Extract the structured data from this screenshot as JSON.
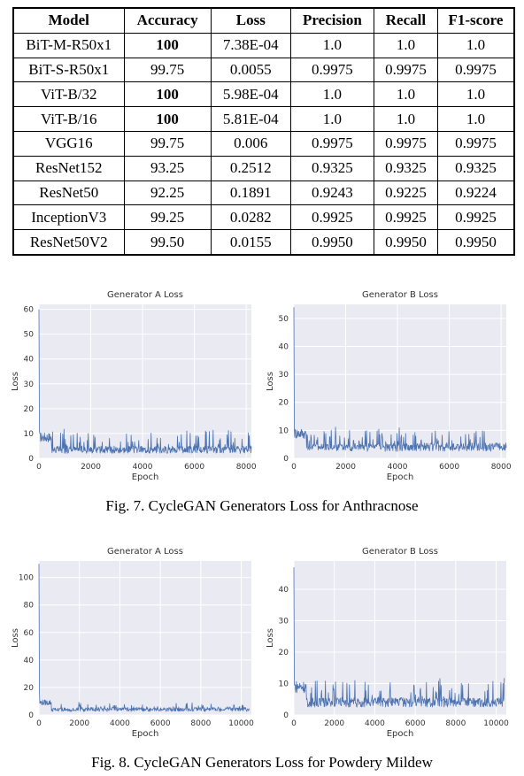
{
  "table": {
    "headers": [
      "Model",
      "Accuracy",
      "Loss",
      "Precision",
      "Recall",
      "F1-score"
    ],
    "rows": [
      {
        "model": "BiT-M-R50x1",
        "accuracy": "100",
        "accuracy_bold": true,
        "loss": "7.38E-04",
        "precision": "1.0",
        "recall": "1.0",
        "f1": "1.0"
      },
      {
        "model": "BiT-S-R50x1",
        "accuracy": "99.75",
        "accuracy_bold": false,
        "loss": "0.0055",
        "precision": "0.9975",
        "recall": "0.9975",
        "f1": "0.9975"
      },
      {
        "model": "ViT-B/32",
        "accuracy": "100",
        "accuracy_bold": true,
        "loss": "5.98E-04",
        "precision": "1.0",
        "recall": "1.0",
        "f1": "1.0"
      },
      {
        "model": "ViT-B/16",
        "accuracy": "100",
        "accuracy_bold": true,
        "loss": "5.81E-04",
        "precision": "1.0",
        "recall": "1.0",
        "f1": "1.0"
      },
      {
        "model": "VGG16",
        "accuracy": "99.75",
        "accuracy_bold": false,
        "loss": "0.006",
        "precision": "0.9975",
        "recall": "0.9975",
        "f1": "0.9975"
      },
      {
        "model": "ResNet152",
        "accuracy": "93.25",
        "accuracy_bold": false,
        "loss": "0.2512",
        "precision": "0.9325",
        "recall": "0.9325",
        "f1": "0.9325"
      },
      {
        "model": "ResNet50",
        "accuracy": "92.25",
        "accuracy_bold": false,
        "loss": "0.1891",
        "precision": "0.9243",
        "recall": "0.9225",
        "f1": "0.9224"
      },
      {
        "model": "InceptionV3",
        "accuracy": "99.25",
        "accuracy_bold": false,
        "loss": "0.0282",
        "precision": "0.9925",
        "recall": "0.9925",
        "f1": "0.9925"
      },
      {
        "model": "ResNet50V2",
        "accuracy": "99.50",
        "accuracy_bold": false,
        "loss": "0.0155",
        "precision": "0.9950",
        "recall": "0.9950",
        "f1": "0.9950"
      }
    ]
  },
  "captions": {
    "fig7": "Fig. 7.  CycleGAN Generators Loss for Anthracnose",
    "fig8": "Fig. 8.  CycleGAN Generators Loss for Powdery Mildew"
  },
  "chart_data": [
    {
      "type": "line",
      "figure": "Fig. 7",
      "title": "Generator A Loss",
      "xlabel": "Epoch",
      "ylabel": "Loss",
      "xlim": [
        0,
        8200
      ],
      "ylim": [
        0,
        62
      ],
      "xticks": [
        0,
        2000,
        4000,
        6000,
        8000
      ],
      "yticks": [
        0,
        10,
        20,
        30,
        40,
        50,
        60
      ],
      "grid": true,
      "background": "#eaeaf2",
      "color": "#4c72b0",
      "series": [
        {
          "peak": {
            "x": 0,
            "y": 60
          },
          "baseline": 3.5,
          "spike_max": 11,
          "epochs": 8200
        }
      ]
    },
    {
      "type": "line",
      "figure": "Fig. 7",
      "title": "Generator B Loss",
      "xlabel": "Epoch",
      "ylabel": "Loss",
      "xlim": [
        0,
        8200
      ],
      "ylim": [
        0,
        55
      ],
      "xticks": [
        0,
        2000,
        4000,
        6000,
        8000
      ],
      "yticks": [
        0,
        10,
        20,
        30,
        40,
        50
      ],
      "grid": true,
      "background": "#eaeaf2",
      "color": "#4c72b0",
      "series": [
        {
          "peak": {
            "x": 0,
            "y": 54
          },
          "baseline": 4,
          "spike_max": 10,
          "epochs": 8200
        }
      ]
    },
    {
      "type": "line",
      "figure": "Fig. 8",
      "title": "Generator A Loss",
      "xlabel": "Epoch",
      "ylabel": "Loss",
      "xlim": [
        0,
        10500
      ],
      "ylim": [
        0,
        112
      ],
      "xticks": [
        0,
        2000,
        4000,
        6000,
        8000,
        10000
      ],
      "yticks": [
        0,
        20,
        40,
        60,
        80,
        100
      ],
      "grid": true,
      "background": "#eaeaf2",
      "color": "#4c72b0",
      "series": [
        {
          "peak": {
            "x": 0,
            "y": 110
          },
          "baseline": 4,
          "spike_max": 8,
          "epochs": 10400
        }
      ]
    },
    {
      "type": "line",
      "figure": "Fig. 8",
      "title": "Generator B Loss",
      "xlabel": "Epoch",
      "ylabel": "Loss",
      "xlim": [
        0,
        10500
      ],
      "ylim": [
        0,
        49
      ],
      "xticks": [
        0,
        2000,
        4000,
        6000,
        8000,
        10000
      ],
      "yticks": [
        0,
        10,
        20,
        30,
        40
      ],
      "grid": true,
      "background": "#eaeaf2",
      "color": "#4c72b0",
      "series": [
        {
          "peak": {
            "x": 0,
            "y": 47
          },
          "baseline": 4,
          "spike_max": 11,
          "epochs": 10400
        }
      ]
    }
  ]
}
